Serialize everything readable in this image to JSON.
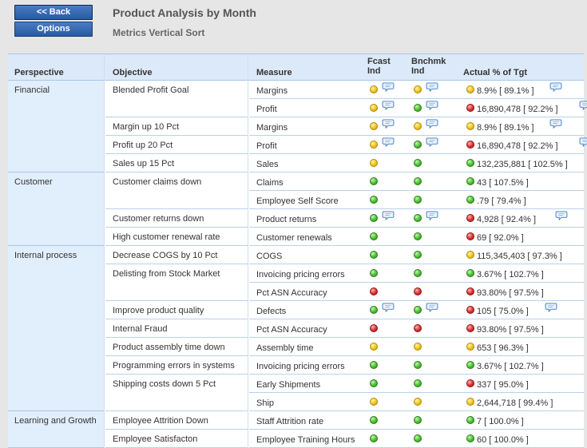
{
  "toolbar": {
    "back_label": "<< Back",
    "options_label": "Options"
  },
  "page": {
    "title": "Product Analysis by Month",
    "subtitle": "Metrics Vertical Sort"
  },
  "columns": {
    "perspective": "Perspective",
    "objective": "Objective",
    "measure": "Measure",
    "fcast_1": "Fcast",
    "fcast_2": "Ind",
    "bench_1": "Bnchmk",
    "bench_2": "Ind",
    "actual": "Actual % of Tgt"
  },
  "perspectives": [
    {
      "label": "Financial"
    },
    {
      "label": "Customer"
    },
    {
      "label": "Internal process"
    },
    {
      "label": "Learning and Growth"
    }
  ],
  "objectives": [
    {
      "label": "Blended Profit Goal"
    },
    {
      "label": "Margin up 10 Pct"
    },
    {
      "label": "Profit up 20 Pct"
    },
    {
      "label": "Sales up 15 Pct"
    },
    {
      "label": "Customer claims down"
    },
    {
      "label": "Customer returns down"
    },
    {
      "label": "High customer renewal rate"
    },
    {
      "label": "Decrease COGS by 10 Pct"
    },
    {
      "label": "Delisting from Stock Market"
    },
    {
      "label": "Improve product quality"
    },
    {
      "label": "Internal Fraud"
    },
    {
      "label": "Product assembly time down"
    },
    {
      "label": "Programming errors in systems"
    },
    {
      "label": "Shipping costs down 5 Pct"
    },
    {
      "label": "Employee Attrition Down"
    },
    {
      "label": "Employee Satisfacton"
    }
  ],
  "rows": [
    {
      "measure": "Margins",
      "fcast": "yellow",
      "fcast_comment": true,
      "bench": "yellow",
      "bench_comment": true,
      "actual_status": "yellow",
      "actual": "8.9% [ 89.1% ]",
      "actual_comment": true
    },
    {
      "measure": "Profit",
      "fcast": "yellow",
      "fcast_comment": true,
      "bench": "green",
      "bench_comment": true,
      "actual_status": "red",
      "actual": "16,890,478 [ 92.2% ]",
      "actual_comment": true
    },
    {
      "measure": "Margins",
      "fcast": "yellow",
      "fcast_comment": true,
      "bench": "yellow",
      "bench_comment": true,
      "actual_status": "yellow",
      "actual": "8.9% [ 89.1% ]",
      "actual_comment": true
    },
    {
      "measure": "Profit",
      "fcast": "yellow",
      "fcast_comment": true,
      "bench": "green",
      "bench_comment": true,
      "actual_status": "red",
      "actual": "16,890,478 [ 92.2% ]",
      "actual_comment": true
    },
    {
      "measure": "Sales",
      "fcast": "yellow",
      "fcast_comment": false,
      "bench": "green",
      "bench_comment": false,
      "actual_status": "green",
      "actual": "132,235,881 [ 102.5% ]",
      "actual_comment": false
    },
    {
      "measure": "Claims",
      "fcast": "green",
      "fcast_comment": false,
      "bench": "green",
      "bench_comment": false,
      "actual_status": "green",
      "actual": "43 [ 107.5% ]",
      "actual_comment": false
    },
    {
      "measure": "Employee Self Score",
      "fcast": "green",
      "fcast_comment": false,
      "bench": "green",
      "bench_comment": false,
      "actual_status": "green",
      "actual": ".79 [ 79.4% ]",
      "actual_comment": false
    },
    {
      "measure": "Product returns",
      "fcast": "green",
      "fcast_comment": true,
      "bench": "green",
      "bench_comment": true,
      "actual_status": "red",
      "actual": "4,928 [ 92.4% ]",
      "actual_comment": true
    },
    {
      "measure": "Customer renewals",
      "fcast": "green",
      "fcast_comment": false,
      "bench": "green",
      "bench_comment": false,
      "actual_status": "red",
      "actual": "69 [ 92.0% ]",
      "actual_comment": false
    },
    {
      "measure": "COGS",
      "fcast": "green",
      "fcast_comment": false,
      "bench": "green",
      "bench_comment": false,
      "actual_status": "yellow",
      "actual": "115,345,403 [ 97.3% ]",
      "actual_comment": false
    },
    {
      "measure": "Invoicing pricing errors",
      "fcast": "green",
      "fcast_comment": false,
      "bench": "green",
      "bench_comment": false,
      "actual_status": "green",
      "actual": "3.67% [ 102.7% ]",
      "actual_comment": false
    },
    {
      "measure": "Pct ASN Accuracy",
      "fcast": "red",
      "fcast_comment": false,
      "bench": "red",
      "bench_comment": false,
      "actual_status": "red",
      "actual": "93.80% [ 97.5% ]",
      "actual_comment": false
    },
    {
      "measure": "Defects",
      "fcast": "green",
      "fcast_comment": true,
      "bench": "green",
      "bench_comment": true,
      "actual_status": "red",
      "actual": "105 [ 75.0% ]",
      "actual_comment": true
    },
    {
      "measure": "Pct ASN Accuracy",
      "fcast": "red",
      "fcast_comment": false,
      "bench": "red",
      "bench_comment": false,
      "actual_status": "red",
      "actual": "93.80% [ 97.5% ]",
      "actual_comment": false
    },
    {
      "measure": "Assembly time",
      "fcast": "yellow",
      "fcast_comment": false,
      "bench": "yellow",
      "bench_comment": false,
      "actual_status": "yellow",
      "actual": "653 [ 96.3% ]",
      "actual_comment": false
    },
    {
      "measure": "Invoicing pricing errors",
      "fcast": "green",
      "fcast_comment": false,
      "bench": "green",
      "bench_comment": false,
      "actual_status": "green",
      "actual": "3.67% [ 102.7% ]",
      "actual_comment": false
    },
    {
      "measure": "Early Shipments",
      "fcast": "green",
      "fcast_comment": false,
      "bench": "green",
      "bench_comment": false,
      "actual_status": "red",
      "actual": "337 [ 95.0% ]",
      "actual_comment": false
    },
    {
      "measure": "Ship",
      "fcast": "yellow",
      "fcast_comment": false,
      "bench": "yellow",
      "bench_comment": false,
      "actual_status": "yellow",
      "actual": "2,644,718 [ 99.4% ]",
      "actual_comment": false
    },
    {
      "measure": "Staff Attrition rate",
      "fcast": "green",
      "fcast_comment": false,
      "bench": "green",
      "bench_comment": false,
      "actual_status": "green",
      "actual": "7 [ 100.0% ]",
      "actual_comment": false
    },
    {
      "measure": "Employee Training Hours",
      "fcast": "green",
      "fcast_comment": false,
      "bench": "green",
      "bench_comment": false,
      "actual_status": "green",
      "actual": "60 [ 100.0% ]",
      "actual_comment": false
    }
  ]
}
